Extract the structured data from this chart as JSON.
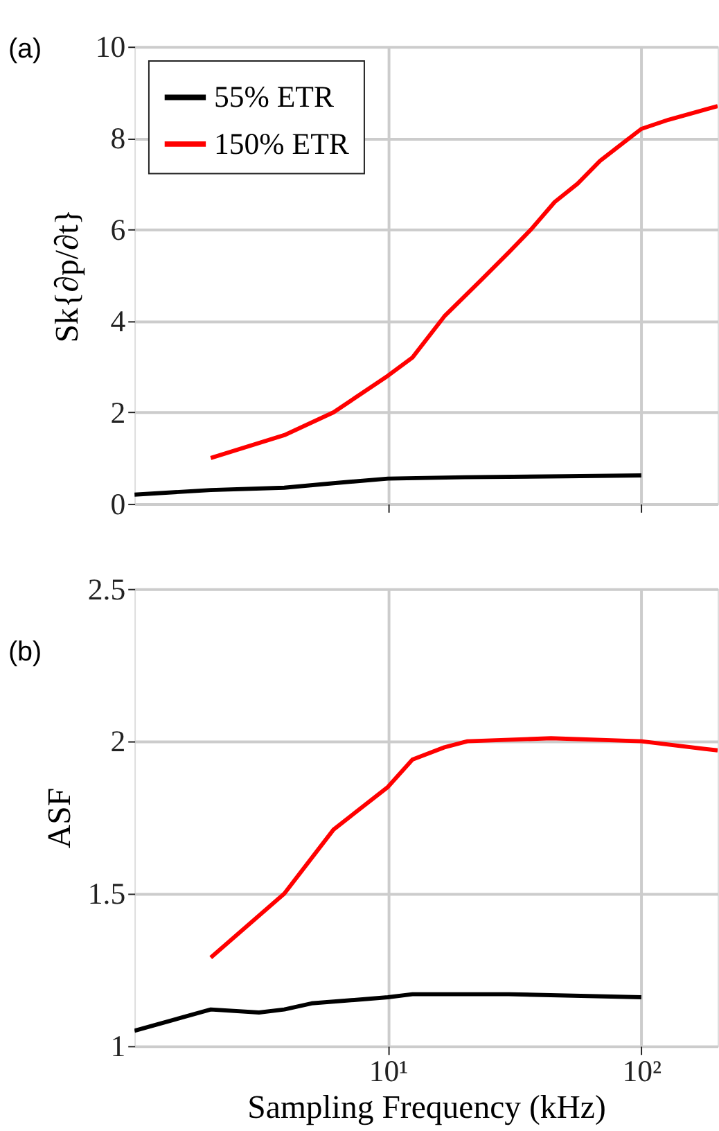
{
  "chart_data": [
    {
      "type": "line",
      "ylabel": "Sk{∂p/∂t}",
      "annotations": [
        "(a)"
      ],
      "log": "x",
      "grid": true,
      "legend": "top left",
      "tick_labels": "y",
      "xlim": [
        1,
        200
      ],
      "xticks": [
        {
          "value": 10,
          "label": null
        },
        {
          "value": 100,
          "label": null
        }
      ],
      "ylim": [
        0,
        10
      ],
      "yticks": [
        0,
        2,
        4,
        6,
        8,
        10
      ],
      "series": [
        {
          "name": "55% ETR",
          "color": "#000000",
          "x": [
            1,
            2,
            3.9,
            6.1,
            10,
            20,
            50,
            100
          ],
          "values": [
            0.2,
            0.3,
            0.35,
            0.45,
            0.55,
            0.58,
            0.6,
            0.62
          ]
        },
        {
          "name": "150% ETR",
          "color": "#ff0000",
          "x": [
            2,
            3.9,
            6.1,
            10,
            12.5,
            16.7,
            23.4,
            30,
            36.7,
            45.5,
            56,
            68.7,
            85,
            100,
            128,
            200
          ],
          "values": [
            1.0,
            1.5,
            2.0,
            2.8,
            3.2,
            4.1,
            4.9,
            5.5,
            6.0,
            6.6,
            7.0,
            7.5,
            7.9,
            8.2,
            8.4,
            8.7
          ]
        }
      ]
    },
    {
      "type": "line",
      "xlabel": "Sampling Frequency (kHz)",
      "ylabel": "ASF",
      "annotations": [
        "(b)"
      ],
      "log": "x",
      "grid": true,
      "xlim": [
        1,
        200
      ],
      "xticks": [
        {
          "value": 10,
          "label": "10¹"
        },
        {
          "value": 100,
          "label": "10²"
        }
      ],
      "ylim": [
        1,
        2.5
      ],
      "yticks": [
        1,
        1.5,
        2,
        2.5
      ],
      "series": [
        {
          "color": "#000000",
          "x": [
            1,
            2,
            3.1,
            3.9,
            5,
            10,
            12.5,
            30,
            100
          ],
          "values": [
            1.05,
            1.12,
            1.11,
            1.12,
            1.14,
            1.16,
            1.17,
            1.17,
            1.16
          ]
        },
        {
          "color": "#ff0000",
          "x": [
            2,
            3.9,
            6.1,
            10,
            12.5,
            16.7,
            20.6,
            44,
            100,
            200
          ],
          "values": [
            1.29,
            1.5,
            1.71,
            1.85,
            1.94,
            1.98,
            2.0,
            2.01,
            2.0,
            1.97
          ]
        }
      ]
    }
  ]
}
